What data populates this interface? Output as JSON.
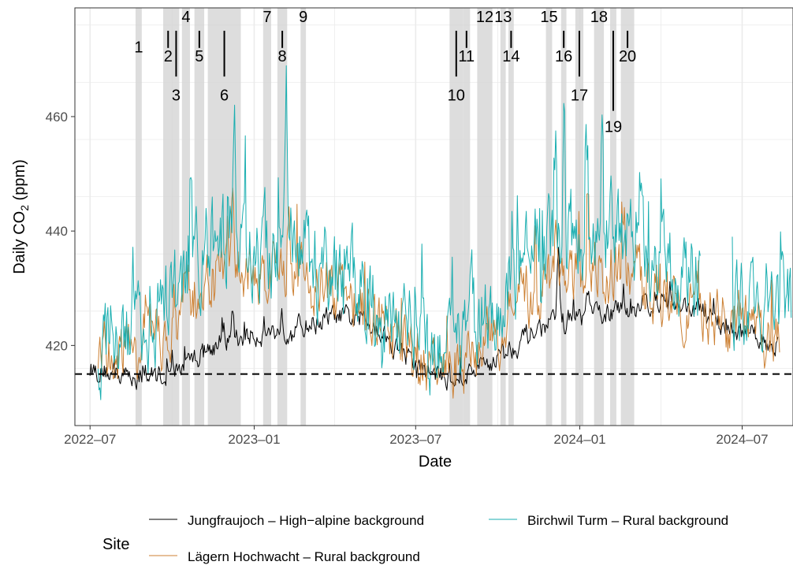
{
  "chart_data": {
    "type": "line",
    "title": "",
    "xlabel": "Date",
    "ylabel_main": "Daily CO",
    "ylabel_sub": "2",
    "ylabel_unit": " (ppm)",
    "x_range": [
      "2022-06-14",
      "2024-08-27"
    ],
    "ylim": [
      406,
      479
    ],
    "x_ticks": [
      {
        "date": "2022-07-01",
        "label": "2022–07"
      },
      {
        "date": "2023-01-01",
        "label": "2023–01"
      },
      {
        "date": "2023-07-01",
        "label": "2023–07"
      },
      {
        "date": "2024-01-01",
        "label": "2024–01"
      },
      {
        "date": "2024-07-01",
        "label": "2024–07"
      }
    ],
    "y_ticks": [
      420,
      440,
      460
    ],
    "grid": true,
    "reference_line": {
      "y": 415,
      "style": "dashed"
    },
    "legend": {
      "title": "Site",
      "position": "bottom"
    },
    "series": [
      {
        "name": "Jungfraujoch – High−alpine background",
        "color": "#000000",
        "start": "2022-07-01",
        "end": "2024-08-10",
        "amp": 1.6,
        "anchors": [
          [
            "2022-07-01",
            416
          ],
          [
            "2022-08-15",
            414.5
          ],
          [
            "2022-10-01",
            415
          ],
          [
            "2022-11-15",
            420
          ],
          [
            "2023-01-01",
            422
          ],
          [
            "2023-02-15",
            423
          ],
          [
            "2023-04-01",
            425
          ],
          [
            "2023-05-15",
            424
          ],
          [
            "2023-07-01",
            416
          ],
          [
            "2023-08-15",
            414
          ],
          [
            "2023-10-01",
            418
          ],
          [
            "2023-11-15",
            423
          ],
          [
            "2024-01-01",
            425
          ],
          [
            "2024-02-15",
            426
          ],
          [
            "2024-04-01",
            428
          ],
          [
            "2024-05-15",
            426
          ],
          [
            "2024-06-15",
            423
          ],
          [
            "2024-08-10",
            420
          ]
        ],
        "spikes": [
          [
            "2022-12-08",
            5.5
          ],
          [
            "2023-02-01",
            3
          ],
          [
            "2023-12-08",
            14
          ],
          [
            "2024-01-10",
            4
          ]
        ]
      },
      {
        "name": "Lägern Hochwacht – Rural background",
        "color": "#cc8033",
        "start": "2022-07-10",
        "end": "2024-08-12",
        "amp": 4.5,
        "anchors": [
          [
            "2022-07-10",
            418
          ],
          [
            "2022-08-15",
            419
          ],
          [
            "2022-10-01",
            422
          ],
          [
            "2022-11-01",
            430
          ],
          [
            "2022-12-01",
            434
          ],
          [
            "2023-01-01",
            432
          ],
          [
            "2023-02-15",
            433
          ],
          [
            "2023-04-01",
            429
          ],
          [
            "2023-05-15",
            425
          ],
          [
            "2023-07-01",
            417
          ],
          [
            "2023-08-15",
            415
          ],
          [
            "2023-10-01",
            422
          ],
          [
            "2023-11-15",
            430
          ],
          [
            "2024-01-01",
            432
          ],
          [
            "2024-02-15",
            433
          ],
          [
            "2024-04-01",
            430
          ],
          [
            "2024-05-15",
            427
          ],
          [
            "2024-06-15",
            424
          ],
          [
            "2024-08-12",
            420
          ]
        ],
        "spikes": [
          [
            "2022-10-15",
            8
          ],
          [
            "2022-12-08",
            18
          ],
          [
            "2023-02-08",
            10
          ],
          [
            "2023-12-05",
            14
          ],
          [
            "2024-01-10",
            18
          ],
          [
            "2024-02-20",
            10
          ]
        ]
      },
      {
        "name": "Birchwil Turm – Rural background",
        "color": "#1aaeb0",
        "start": "2022-07-10",
        "end": "2024-08-25",
        "amp": 6.5,
        "anchors": [
          [
            "2022-07-10",
            421
          ],
          [
            "2022-08-15",
            422
          ],
          [
            "2022-10-01",
            427
          ],
          [
            "2022-11-01",
            437
          ],
          [
            "2022-12-01",
            440
          ],
          [
            "2023-01-01",
            436
          ],
          [
            "2023-02-15",
            437
          ],
          [
            "2023-04-01",
            431
          ],
          [
            "2023-05-15",
            428
          ],
          [
            "2023-07-01",
            422
          ],
          [
            "2023-08-15",
            421
          ],
          [
            "2023-10-01",
            428
          ],
          [
            "2023-11-15",
            436
          ],
          [
            "2024-01-01",
            439
          ],
          [
            "2024-02-15",
            440
          ],
          [
            "2024-04-01",
            434
          ],
          [
            "2024-05-15",
            431
          ],
          [
            "2024-06-15",
            428
          ],
          [
            "2024-08-25",
            426
          ]
        ],
        "spikes": [
          [
            "2022-10-22",
            18
          ],
          [
            "2022-12-10",
            24
          ],
          [
            "2023-02-06",
            25
          ],
          [
            "2023-12-05",
            18
          ],
          [
            "2023-12-14",
            26
          ],
          [
            "2024-01-08",
            19
          ],
          [
            "2024-01-26",
            22
          ],
          [
            "2024-02-26",
            10
          ]
        ],
        "gap": [
          "2024-05-15",
          "2024-06-20"
        ]
      }
    ],
    "events": [
      {
        "label": "1",
        "start": "2022-08-21",
        "end": "2022-08-27",
        "line": null,
        "label_y": 472.2
      },
      {
        "label": "2",
        "start": "2022-09-21",
        "end": "2022-10-01",
        "line": [
          472,
          475
        ],
        "label_y": 470.6
      },
      {
        "label": "3",
        "start": "2022-10-02",
        "end": "2022-10-08",
        "line": [
          467,
          475
        ],
        "label_y": 463.8
      },
      {
        "label": "4",
        "start": "2022-10-12",
        "end": "2022-10-20",
        "line": null,
        "label_y": 477.5
      },
      {
        "label": "5",
        "start": "2022-10-26",
        "end": "2022-11-05",
        "line": [
          472,
          475
        ],
        "label_y": 470.6
      },
      {
        "label": "6",
        "start": "2022-11-10",
        "end": "2022-12-16",
        "line": [
          467,
          475
        ],
        "label_y": 463.8
      },
      {
        "label": "7",
        "start": "2023-01-11",
        "end": "2023-01-19",
        "line": null,
        "label_y": 477.5
      },
      {
        "label": "8",
        "start": "2023-01-27",
        "end": "2023-02-06",
        "line": [
          472,
          475
        ],
        "label_y": 470.6
      },
      {
        "label": "9",
        "start": "2023-02-22",
        "end": "2023-02-27",
        "line": null,
        "label_y": 477.5
      },
      {
        "label": "10",
        "start": "2023-08-08",
        "end": "2023-08-22",
        "line": [
          467,
          475
        ],
        "label_y": 463.8
      },
      {
        "label": "11",
        "start": "2023-08-23",
        "end": "2023-08-30",
        "line": [
          472,
          475
        ],
        "label_y": 470.6
      },
      {
        "label": "12",
        "start": "2023-09-08",
        "end": "2023-09-24",
        "line": null,
        "label_y": 477.5
      },
      {
        "label": "13",
        "start": "2023-10-04",
        "end": "2023-10-09",
        "line": null,
        "label_y": 477.5
      },
      {
        "label": "14",
        "start": "2023-10-13",
        "end": "2023-10-18",
        "line": [
          472,
          475
        ],
        "label_y": 470.6
      },
      {
        "label": "15",
        "start": "2023-11-24",
        "end": "2023-11-30",
        "line": null,
        "label_y": 477.5
      },
      {
        "label": "16",
        "start": "2023-12-11",
        "end": "2023-12-16",
        "line": [
          472,
          475
        ],
        "label_y": 470.6
      },
      {
        "label": "17",
        "start": "2023-12-27",
        "end": "2024-01-04",
        "line": [
          467,
          475
        ],
        "label_y": 463.8
      },
      {
        "label": "18",
        "start": "2024-01-17",
        "end": "2024-01-27",
        "line": null,
        "label_y": 477.5
      },
      {
        "label": "19",
        "start": "2024-02-04",
        "end": "2024-02-10",
        "line": [
          461,
          475
        ],
        "label_y": 458.3
      },
      {
        "label": "20",
        "start": "2024-02-16",
        "end": "2024-03-01",
        "line": [
          472,
          475
        ],
        "label_y": 470.6
      }
    ]
  }
}
